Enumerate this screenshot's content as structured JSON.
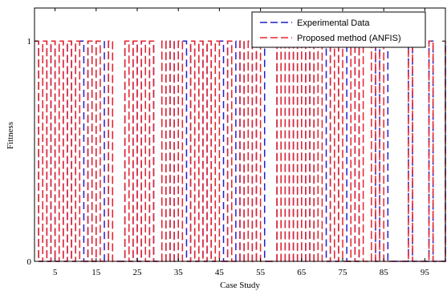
{
  "chart_data": {
    "type": "line",
    "title": "",
    "xlabel": "Case Study",
    "ylabel": "Fittness",
    "xlim": [
      0,
      100
    ],
    "ylim": [
      0,
      1.15
    ],
    "xticks": [
      5,
      15,
      25,
      35,
      45,
      55,
      65,
      75,
      85,
      95
    ],
    "yticks": [
      0,
      1
    ],
    "grid": false,
    "legend_position": "top-right",
    "series": [
      {
        "name": "Experimental Data",
        "color": "#1f1fcc",
        "dash": "dashed",
        "x": [
          0,
          1,
          2,
          3,
          4,
          5,
          6,
          7,
          8,
          9,
          10,
          11,
          12,
          13,
          14,
          15,
          16,
          17,
          18,
          19,
          20,
          21,
          22,
          23,
          24,
          25,
          26,
          27,
          28,
          29,
          30,
          31,
          32,
          33,
          34,
          35,
          36,
          37,
          38,
          39,
          40,
          41,
          42,
          43,
          44,
          45,
          46,
          47,
          48,
          49,
          50,
          51,
          52,
          53,
          54,
          55,
          56,
          57,
          58,
          59,
          60,
          61,
          62,
          63,
          64,
          65,
          66,
          67,
          68,
          69,
          70,
          71,
          72,
          73,
          74,
          75,
          76,
          77,
          78,
          79,
          80,
          81,
          82,
          83,
          84,
          85,
          86,
          87,
          88,
          89,
          90,
          91,
          92,
          93,
          94,
          95,
          96,
          97,
          98,
          99,
          100
        ],
        "y": [
          1,
          0,
          1,
          0,
          1,
          0,
          1,
          0,
          1,
          0,
          1,
          1,
          0,
          1,
          0,
          1,
          1,
          0,
          1,
          0,
          0,
          0,
          1,
          0,
          1,
          0,
          1,
          0,
          1,
          0,
          0,
          1,
          0,
          1,
          0,
          1,
          1,
          0,
          1,
          0,
          1,
          0,
          1,
          0,
          1,
          1,
          0,
          1,
          1,
          0,
          1,
          0,
          1,
          0,
          1,
          1,
          0,
          0,
          0,
          1,
          0,
          1,
          0,
          1,
          0,
          1,
          0,
          1,
          0,
          1,
          1,
          0,
          1,
          0,
          1,
          1,
          0,
          1,
          0,
          1,
          1,
          1,
          1,
          0,
          1,
          1,
          0,
          0,
          0,
          0,
          0,
          1,
          0,
          0,
          0,
          0,
          1,
          0,
          0,
          0,
          1
        ]
      },
      {
        "name": "Proposed method (ANFIS)",
        "color": "#e8232a",
        "dash": "dashed",
        "x": [
          0,
          1,
          2,
          3,
          4,
          5,
          6,
          7,
          8,
          9,
          10,
          11,
          12,
          13,
          14,
          15,
          16,
          17,
          18,
          19,
          20,
          21,
          22,
          23,
          24,
          25,
          26,
          27,
          28,
          29,
          30,
          31,
          32,
          33,
          34,
          35,
          36,
          37,
          38,
          39,
          40,
          41,
          42,
          43,
          44,
          45,
          46,
          47,
          48,
          49,
          50,
          51,
          52,
          53,
          54,
          55,
          56,
          57,
          58,
          59,
          60,
          61,
          62,
          63,
          64,
          65,
          66,
          67,
          68,
          69,
          70,
          71,
          72,
          73,
          74,
          75,
          76,
          77,
          78,
          79,
          80,
          81,
          82,
          83,
          84,
          85,
          86,
          87,
          88,
          89,
          90,
          91,
          92,
          93,
          94,
          95,
          96,
          97,
          98,
          99,
          100
        ],
        "y": [
          1,
          0,
          1,
          0,
          1,
          0,
          1,
          0,
          1,
          0,
          1,
          0,
          0,
          1,
          0,
          1,
          0,
          0,
          1,
          0,
          0,
          0,
          1,
          0,
          1,
          0,
          1,
          0,
          1,
          0,
          0,
          1,
          0,
          1,
          0,
          1,
          0,
          0,
          1,
          0,
          1,
          0,
          1,
          0,
          1,
          0,
          0,
          1,
          0,
          0,
          1,
          0,
          1,
          0,
          1,
          0,
          0,
          0,
          0,
          1,
          0,
          1,
          0,
          1,
          0,
          1,
          0,
          1,
          0,
          1,
          0,
          0,
          1,
          0,
          1,
          0,
          0,
          1,
          0,
          1,
          0,
          0,
          1,
          0,
          1,
          0,
          0,
          0,
          0,
          0,
          0,
          1,
          0,
          0,
          0,
          0,
          1,
          0,
          0,
          0,
          1
        ]
      }
    ]
  }
}
